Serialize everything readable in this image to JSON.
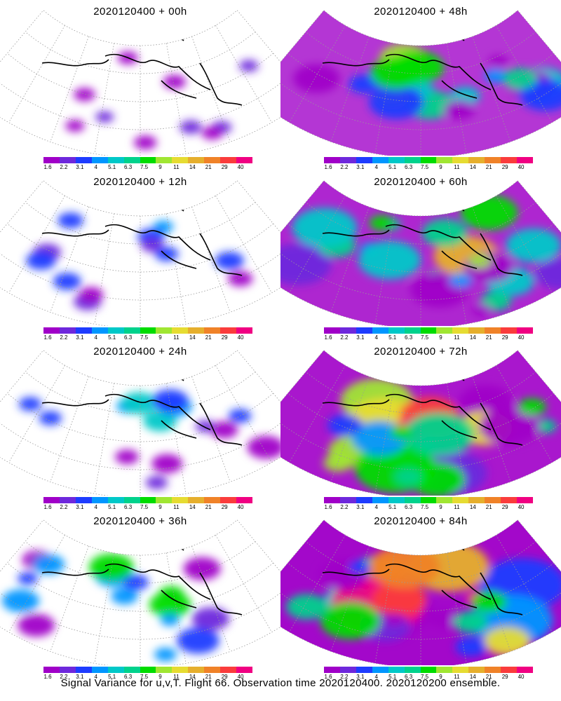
{
  "palette": [
    {
      "label": "1.6",
      "color": "#a000c8"
    },
    {
      "label": "2.2",
      "color": "#6e28dc"
    },
    {
      "label": "3.1",
      "color": "#1e3cff"
    },
    {
      "label": "4",
      "color": "#0096ff"
    },
    {
      "label": "5.1",
      "color": "#00c8c8"
    },
    {
      "label": "6.3",
      "color": "#00d28c"
    },
    {
      "label": "7.5",
      "color": "#00dc00"
    },
    {
      "label": "9",
      "color": "#a0e632"
    },
    {
      "label": "11",
      "color": "#e6dc32"
    },
    {
      "label": "14",
      "color": "#e6af2d"
    },
    {
      "label": "21",
      "color": "#f08228"
    },
    {
      "label": "29",
      "color": "#fa3c3c"
    },
    {
      "label": "40",
      "color": "#f00082"
    }
  ],
  "panels": [
    {
      "title": "2020120400  + 00h",
      "lead_hours": 0
    },
    {
      "title": "2020120400  + 48h",
      "lead_hours": 48
    },
    {
      "title": "2020120400  + 12h",
      "lead_hours": 12
    },
    {
      "title": "2020120400  + 60h",
      "lead_hours": 60
    },
    {
      "title": "2020120400  + 24h",
      "lead_hours": 24
    },
    {
      "title": "2020120400  + 72h",
      "lead_hours": 72
    },
    {
      "title": "2020120400  + 36h",
      "lead_hours": 36
    },
    {
      "title": "2020120400  + 84h",
      "lead_hours": 84
    }
  ],
  "caption": "Signal Variance for u,v,T. Flight 66. Observation time 2020120400. 2020120200 ensemble."
}
